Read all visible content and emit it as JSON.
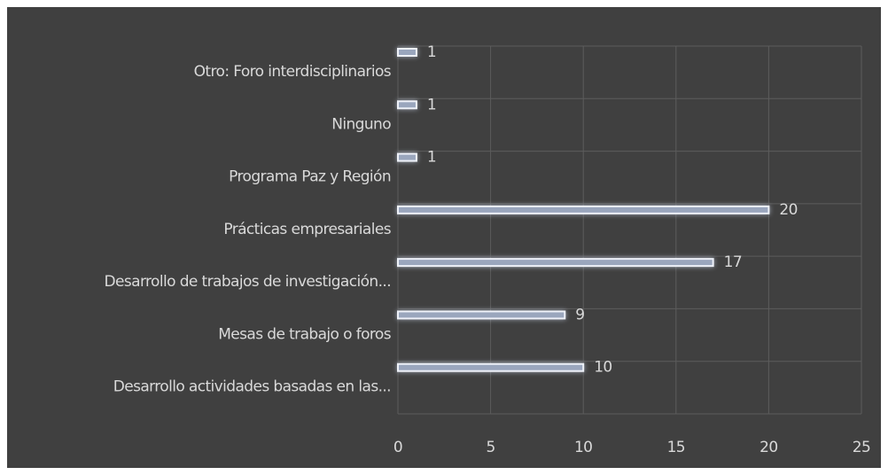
{
  "chart_data": {
    "type": "barh",
    "categories": [
      "Otro: Foro interdisciplinarios",
      "Ninguno",
      "Programa Paz y Región",
      "Prácticas empresariales",
      "Desarrollo de trabajos de investigación...",
      "Mesas de trabajo o foros",
      "Desarrollo actividades basadas en las..."
    ],
    "values": [
      1,
      1,
      1,
      20,
      17,
      9,
      10
    ],
    "color": "#9aa6bd",
    "xlim": [
      0,
      25
    ],
    "xticks": [
      0,
      5,
      10,
      15,
      20,
      25
    ],
    "grid": true
  }
}
